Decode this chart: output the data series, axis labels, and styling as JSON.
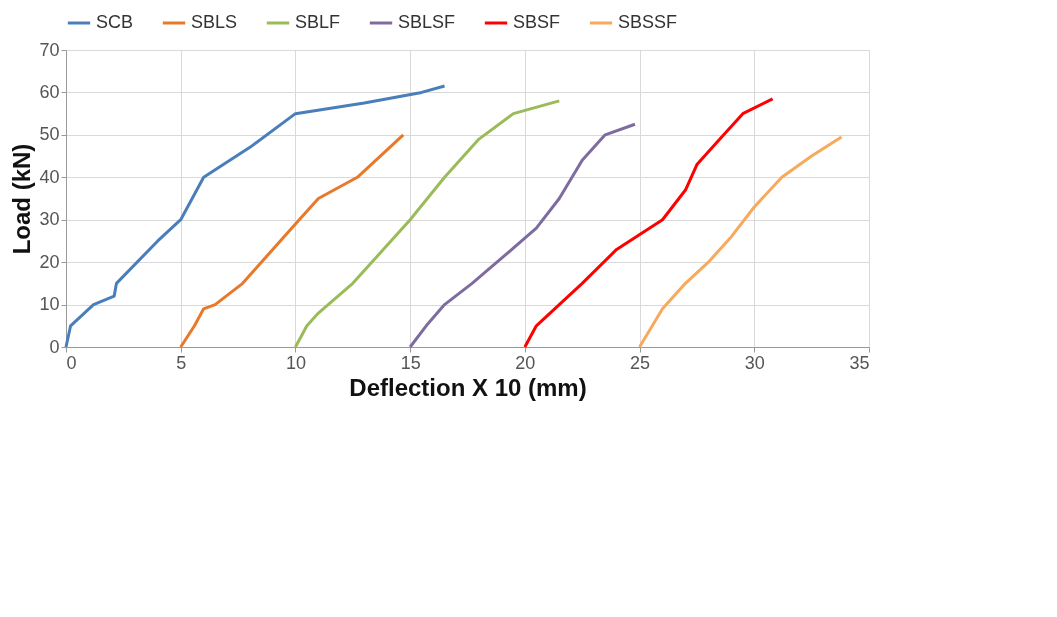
{
  "chart_data": {
    "type": "line",
    "xlabel": "Deflection X 10 (mm)",
    "ylabel": "Load (kN)",
    "xlim": [
      0,
      35
    ],
    "xticks": [
      0,
      5,
      10,
      15,
      20,
      25,
      30,
      35
    ],
    "ylim": [
      0,
      70
    ],
    "yticks": [
      0,
      10,
      20,
      30,
      40,
      50,
      60,
      70
    ],
    "grid": true,
    "legend": "top",
    "marker": "none",
    "line_style": "solid",
    "series": [
      {
        "name": "SCB",
        "color": "#4a7ebb",
        "x": [
          0,
          0.2,
          1.2,
          2.1,
          2.2,
          4,
          5,
          5.5,
          6,
          8,
          10,
          13,
          15.5,
          16.5
        ],
        "values": [
          0,
          5,
          10,
          12,
          15,
          25,
          30,
          35,
          40,
          47,
          55,
          57.5,
          60,
          61.5
        ]
      },
      {
        "name": "SBLS",
        "color": "#e8782a",
        "x": [
          5,
          5.6,
          6,
          6.5,
          7.7,
          10,
          11,
          12.7,
          14.7
        ],
        "values": [
          0,
          5,
          9,
          10,
          15,
          29,
          35,
          40,
          50
        ]
      },
      {
        "name": "SBLF",
        "color": "#9bbb59",
        "x": [
          10,
          10.5,
          11,
          12.5,
          15,
          16.5,
          18,
          19.5,
          21.5
        ],
        "values": [
          0,
          5,
          8,
          15,
          30,
          40,
          49,
          55,
          58
        ]
      },
      {
        "name": "SBLSF",
        "color": "#7e6ba0",
        "x": [
          15,
          15.7,
          16.5,
          17.7,
          19,
          20.5,
          21.5,
          22.5,
          23.5,
          24.8
        ],
        "values": [
          0,
          5,
          10,
          15,
          21,
          28,
          35,
          44,
          50,
          52.5
        ]
      },
      {
        "name": "SBSF",
        "color": "#ff0000",
        "x": [
          20,
          20.5,
          21.7,
          22.5,
          24,
          26,
          27,
          27.5,
          28.5,
          29.5,
          30.8
        ],
        "values": [
          0,
          5,
          11,
          15,
          23,
          30,
          37,
          43,
          49,
          55,
          58.5
        ]
      },
      {
        "name": "SBSSF",
        "color": "#f7a95c",
        "x": [
          25,
          26,
          27,
          28,
          29,
          30,
          31.2,
          32.5,
          33.8
        ],
        "values": [
          0,
          9,
          15,
          20,
          26,
          33,
          40,
          45,
          49.5
        ]
      }
    ]
  }
}
